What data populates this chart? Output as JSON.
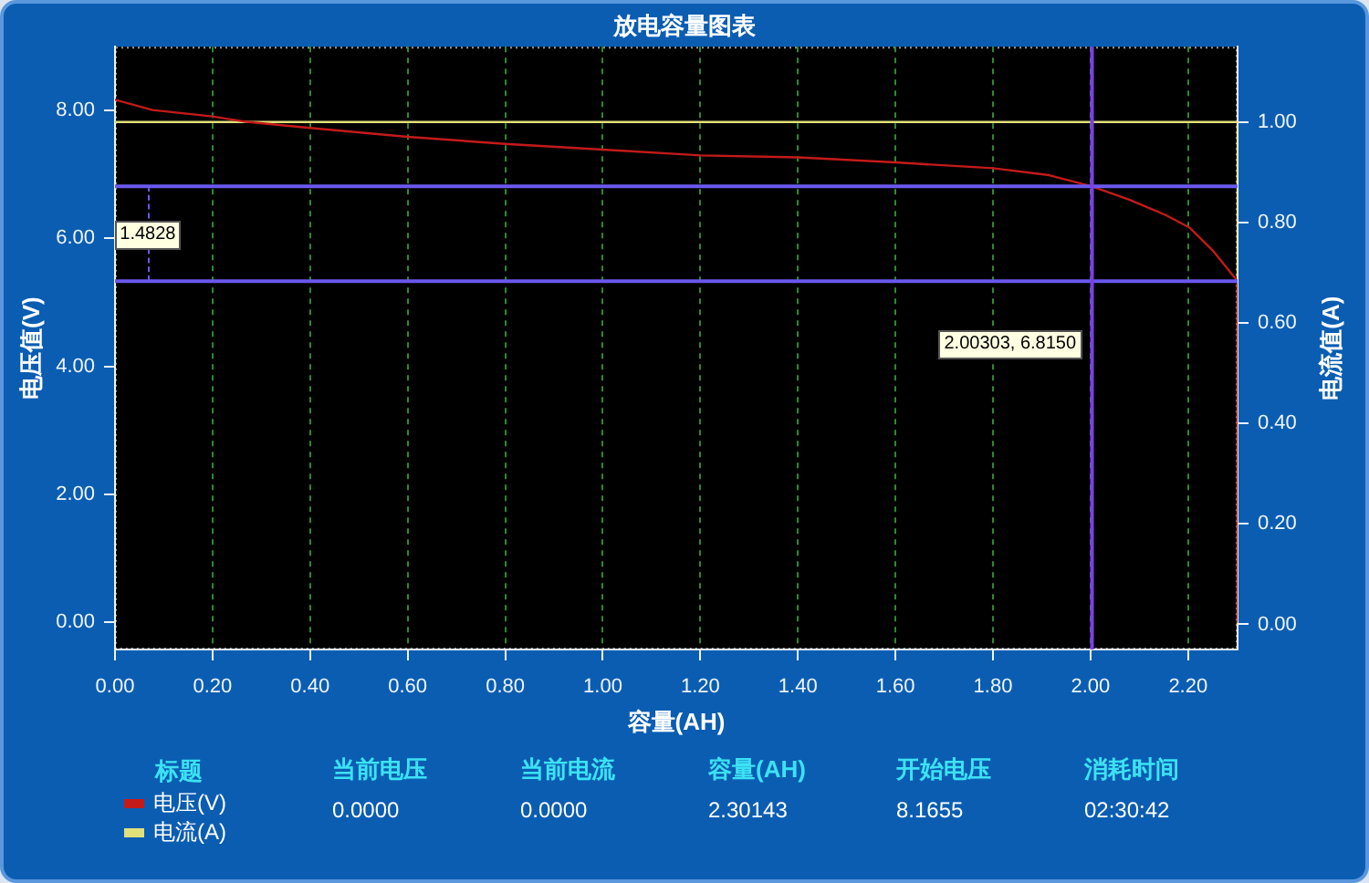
{
  "chart_data": {
    "type": "line",
    "title": "放电容量图表",
    "xlabel": "容量(AH)",
    "ylabel": "电压值(V)",
    "y2label": "电流值(A)",
    "legend_title": "标题",
    "legend": "bottom left",
    "grid": "x",
    "xlim": [
      0,
      2.30143
    ],
    "xticks": [
      {
        "value": 0,
        "label": "0.00"
      },
      {
        "value": 0.2,
        "label": "0.20"
      },
      {
        "value": 0.4,
        "label": "0.40"
      },
      {
        "value": 0.6,
        "label": "0.60"
      },
      {
        "value": 0.8,
        "label": "0.80"
      },
      {
        "value": 1,
        "label": "1.00"
      },
      {
        "value": 1.2,
        "label": "1.20"
      },
      {
        "value": 1.4,
        "label": "1.40"
      },
      {
        "value": 1.6,
        "label": "1.60"
      },
      {
        "value": 1.8,
        "label": "1.80"
      },
      {
        "value": 2,
        "label": "2.00"
      },
      {
        "value": 2.2,
        "label": "2.20"
      }
    ],
    "ylim": [
      -0.43,
      9
    ],
    "yticks": [
      {
        "value": 0,
        "label": "0.00"
      },
      {
        "value": 2,
        "label": "2.00"
      },
      {
        "value": 4,
        "label": "4.00"
      },
      {
        "value": 6,
        "label": "6.00"
      },
      {
        "value": 8,
        "label": "8.00"
      }
    ],
    "y2lim": [
      -0.05,
      1.15
    ],
    "y2ticks": [
      {
        "value": 0,
        "label": "0.00"
      },
      {
        "value": 0.2,
        "label": "0.20"
      },
      {
        "value": 0.4,
        "label": "0.40"
      },
      {
        "value": 0.6,
        "label": "0.60"
      },
      {
        "value": 0.8,
        "label": "0.80"
      },
      {
        "value": 1,
        "label": "1.00"
      }
    ],
    "series": [
      {
        "name": "电压(V)",
        "color": "#c41a1a",
        "x": [
          0,
          0.077,
          0.2,
          0.264,
          0.4,
          0.6,
          0.8,
          1,
          1.2,
          1.4,
          1.6,
          1.8,
          1.915,
          2,
          2.078,
          2.153,
          2.203,
          2.252,
          2.30143,
          2.30143
        ],
        "values": [
          8.17,
          8.01,
          7.91,
          7.83,
          7.73,
          7.59,
          7.48,
          7.39,
          7.3,
          7.27,
          7.19,
          7.1,
          6.99,
          6.82,
          6.61,
          6.37,
          6.17,
          5.8,
          5.33,
          0
        ]
      },
      {
        "name": "电流(A)",
        "color": "#e0e07a",
        "axis": "y2",
        "x": [
          0,
          2.30143,
          2.30143
        ],
        "values": [
          1,
          1,
          0
        ]
      }
    ],
    "ref_lines": [
      {
        "axis": "y",
        "value": 6.815,
        "color": "#6a58ee"
      },
      {
        "axis": "y",
        "value": 5.33,
        "color": "#6a58ee"
      },
      {
        "axis": "x",
        "value": 2.00303,
        "color": "#7a40e6"
      }
    ],
    "annotations": [
      {
        "text": "1.4828",
        "x": 0.068,
        "y": 6.05
      },
      "2.00303, 6.8150",
      "当前电压",
      "0.0000",
      "当前电流",
      "0.0000",
      "容量(AH)",
      "2.30143",
      "开始电压",
      "8.1655",
      "消耗时间",
      "02:30:42"
    ]
  }
}
